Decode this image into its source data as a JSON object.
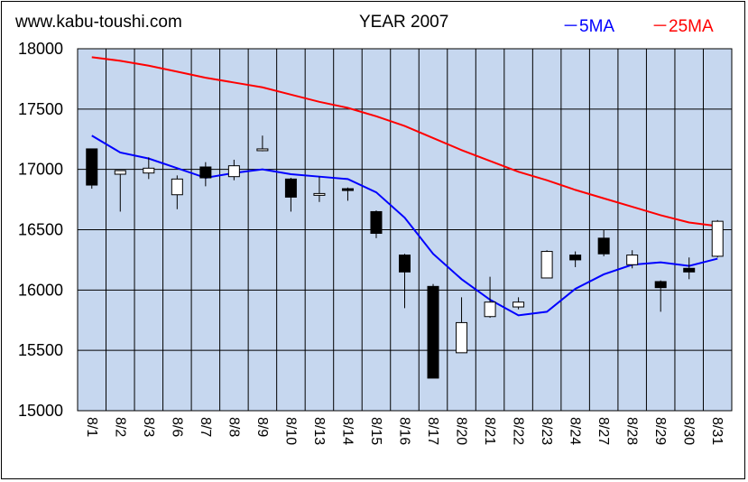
{
  "header": {
    "site": "www.kabu-toushi.com",
    "title": "YEAR 2007"
  },
  "legend": [
    {
      "label": "－5MA",
      "color": "#0000ff"
    },
    {
      "label": "－25MA",
      "color": "#ff0000"
    }
  ],
  "colors": {
    "plot_background": "#c6d7ef",
    "grid": "#000000",
    "ma5": "#0000ff",
    "ma25": "#ff0000",
    "candle_up": "#ffffff",
    "candle_down": "#000000"
  },
  "chart_data": {
    "type": "candlestick",
    "categories": [
      "8/1",
      "8/2",
      "8/3",
      "8/6",
      "8/7",
      "8/8",
      "8/9",
      "8/10",
      "8/13",
      "8/14",
      "8/15",
      "8/16",
      "8/17",
      "8/20",
      "8/21",
      "8/22",
      "8/23",
      "8/24",
      "8/27",
      "8/28",
      "8/29",
      "8/30",
      "8/31"
    ],
    "ylim": [
      15000,
      18000
    ],
    "yticks": [
      15000,
      15500,
      16000,
      16500,
      17000,
      17500,
      18000
    ],
    "grid": true,
    "series": [
      {
        "name": "candles",
        "open": [
          17170,
          16960,
          16970,
          16790,
          17020,
          16940,
          17170,
          16920,
          16800,
          16840,
          16650,
          16290,
          16030,
          15480,
          15780,
          15860,
          16100,
          16290,
          16430,
          16210,
          16070,
          16180,
          16280
        ],
        "high": [
          17170,
          16990,
          17100,
          16950,
          17060,
          17080,
          17280,
          16930,
          16940,
          16850,
          16660,
          16300,
          16050,
          15940,
          16110,
          15940,
          16330,
          16320,
          16500,
          16330,
          16080,
          16270,
          16580
        ],
        "low": [
          16840,
          16650,
          16920,
          16670,
          16860,
          16910,
          17150,
          16650,
          16730,
          16740,
          16430,
          15850,
          15270,
          15480,
          15770,
          15840,
          16100,
          16190,
          16280,
          16180,
          15820,
          16090,
          16270
        ],
        "close": [
          16870,
          16990,
          17010,
          16920,
          16930,
          17030,
          17170,
          16770,
          16800,
          16830,
          16470,
          16150,
          15270,
          15730,
          15900,
          15900,
          16320,
          16250,
          16300,
          16290,
          16020,
          16150,
          16570
        ]
      },
      {
        "name": "5MA",
        "values": [
          17280,
          17140,
          17090,
          17010,
          16930,
          16970,
          17000,
          16960,
          16940,
          16920,
          16810,
          16600,
          16300,
          16090,
          15920,
          15790,
          15820,
          16010,
          16130,
          16210,
          16230,
          16200,
          16260
        ]
      },
      {
        "name": "25MA",
        "values": [
          17930,
          17900,
          17860,
          17810,
          17760,
          17720,
          17680,
          17620,
          17560,
          17510,
          17440,
          17360,
          17260,
          17160,
          17070,
          16980,
          16910,
          16830,
          16760,
          16690,
          16620,
          16560,
          16530
        ]
      }
    ]
  }
}
